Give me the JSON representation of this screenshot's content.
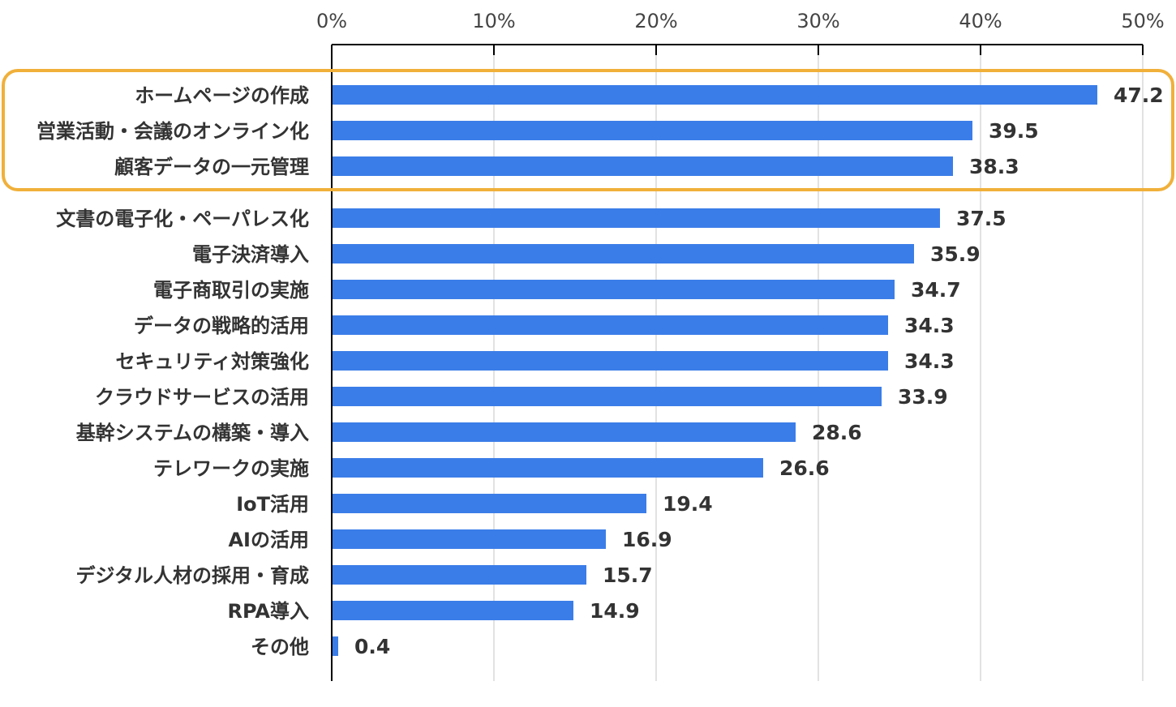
{
  "chart_data": {
    "type": "bar",
    "orientation": "horizontal",
    "categories": [
      "ホームページの作成",
      "営業活動・会議のオンライン化",
      "顧客データの一元管理",
      "文書の電子化・ペーパレス化",
      "電子決済導入",
      "電子商取引の実施",
      "データの戦略的活用",
      "セキュリティ対策強化",
      "クラウドサービスの活用",
      "基幹システムの構築・導入",
      "テレワークの実施",
      "IoT活用",
      "AIの活用",
      "デジタル人材の採用・育成",
      "RPA導入",
      "その他"
    ],
    "values": [
      47.2,
      39.5,
      38.3,
      37.5,
      35.9,
      34.7,
      34.3,
      34.3,
      33.9,
      28.6,
      26.6,
      19.4,
      16.9,
      15.7,
      14.9,
      0.4
    ],
    "value_labels": [
      "47.2",
      "39.5",
      "38.3",
      "37.5",
      "35.9",
      "34.7",
      "34.3",
      "34.3",
      "33.9",
      "28.6",
      "26.6",
      "19.4",
      "16.9",
      "15.7",
      "14.9",
      "0.4"
    ],
    "xlim": [
      0,
      50
    ],
    "x_ticks": [
      0,
      10,
      20,
      30,
      40,
      50
    ],
    "x_tick_labels": [
      "0%",
      "10%",
      "20%",
      "30%",
      "40%",
      "50%"
    ],
    "axis_position": "top",
    "grid": true,
    "highlighted_categories": 3,
    "bar_color": "#3b7de8",
    "highlight_color": "#f0b03a",
    "title": "",
    "xlabel": "",
    "ylabel": ""
  }
}
